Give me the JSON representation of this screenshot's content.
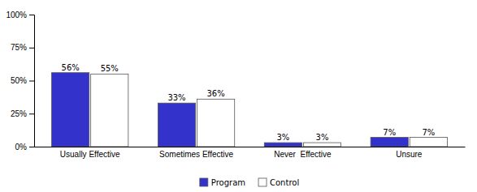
{
  "chart_data": {
    "type": "bar",
    "categories": [
      "Usually Effective",
      "Sometimes Effective",
      "Never  Effective",
      "Unsure"
    ],
    "series": [
      {
        "name": "Program",
        "color": "#3333CC",
        "values": [
          56,
          33,
          3,
          7
        ],
        "value_labels": [
          "56%",
          "33%",
          "3%",
          "7%"
        ]
      },
      {
        "name": "Control",
        "color": "#FFFFFF",
        "values": [
          55,
          36,
          3,
          7
        ],
        "value_labels": [
          "55%",
          "36%",
          "3%",
          "7%"
        ]
      }
    ],
    "ylim": [
      0,
      100
    ],
    "yticks": [
      {
        "value": 0,
        "label": "0%"
      },
      {
        "value": 25,
        "label": "25%"
      },
      {
        "value": 50,
        "label": "50%"
      },
      {
        "value": 75,
        "label": "75%"
      },
      {
        "value": 100,
        "label": "100%"
      }
    ],
    "grid": false,
    "legend": "bottom",
    "data_labels": true
  }
}
